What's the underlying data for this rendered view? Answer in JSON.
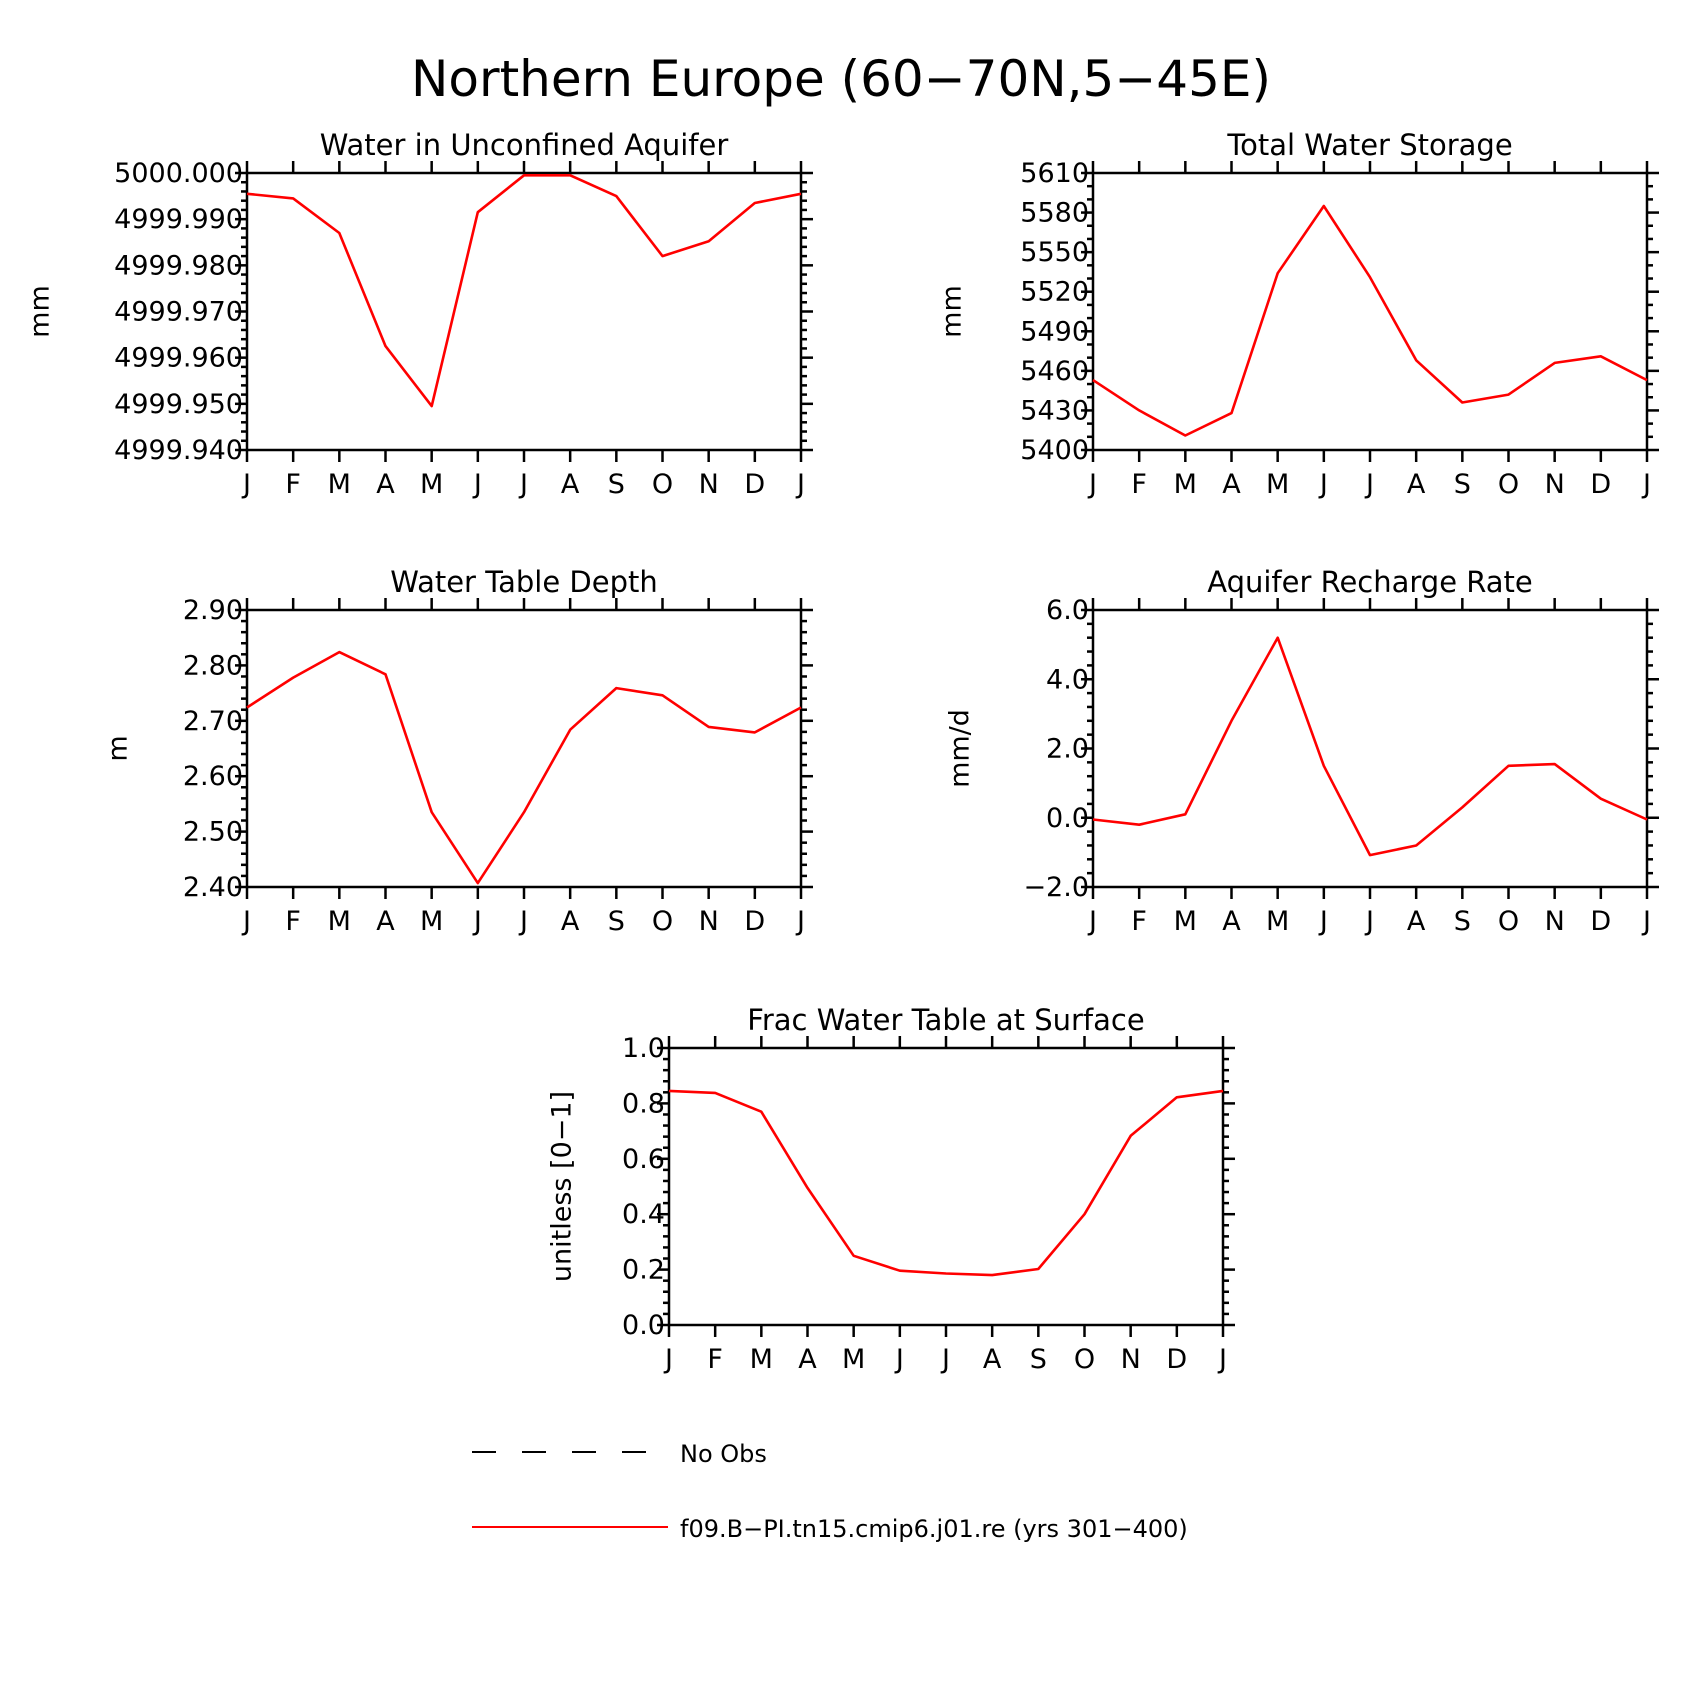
{
  "title": "Northern Europe (60−70N,5−45E)",
  "chart_data": [
    {
      "type": "line",
      "title": "Water in Unconfined Aquifer",
      "ylabel": "mm",
      "xlabel": "",
      "categories": [
        "J",
        "F",
        "M",
        "A",
        "M",
        "J",
        "J",
        "A",
        "S",
        "O",
        "N",
        "D",
        "J"
      ],
      "ylim": [
        4999.94,
        5000.0
      ],
      "yticks": [
        4999.94,
        4999.95,
        4999.96,
        4999.97,
        4999.98,
        4999.99,
        5000.0
      ],
      "ytick_labels": [
        "4999.940",
        "4999.950",
        "4999.960",
        "4999.970",
        "4999.980",
        "4999.990",
        "5000.000"
      ],
      "minor_per_major": 4,
      "series": [
        {
          "name": "f09.B−PI.tn15.cmip6.j01.re (yrs 301−400)",
          "values": [
            4999.9955,
            4999.9945,
            4999.987,
            4999.9625,
            4999.9495,
            4999.9915,
            4999.9995,
            4999.9995,
            4999.995,
            4999.982,
            4999.9852,
            4999.9935,
            4999.9955
          ]
        }
      ]
    },
    {
      "type": "line",
      "title": "Total Water Storage",
      "ylabel": "mm",
      "xlabel": "",
      "categories": [
        "J",
        "F",
        "M",
        "A",
        "M",
        "J",
        "J",
        "A",
        "S",
        "O",
        "N",
        "D",
        "J"
      ],
      "ylim": [
        5400,
        5610
      ],
      "yticks": [
        5400,
        5430,
        5460,
        5490,
        5520,
        5550,
        5580,
        5610
      ],
      "ytick_labels": [
        "5400",
        "5430",
        "5460",
        "5490",
        "5520",
        "5550",
        "5580",
        "5610"
      ],
      "minor_per_major": 2,
      "series": [
        {
          "name": "f09.B−PI.tn15.cmip6.j01.re (yrs 301−400)",
          "values": [
            5453,
            5430,
            5411,
            5428,
            5534,
            5585,
            5531,
            5468,
            5436,
            5442,
            5466,
            5471,
            5453
          ]
        }
      ]
    },
    {
      "type": "line",
      "title": "Water Table Depth",
      "ylabel": "m",
      "xlabel": "",
      "categories": [
        "J",
        "F",
        "M",
        "A",
        "M",
        "J",
        "J",
        "A",
        "S",
        "O",
        "N",
        "D",
        "J"
      ],
      "ylim": [
        2.4,
        2.9
      ],
      "yticks": [
        2.4,
        2.5,
        2.6,
        2.7,
        2.8,
        2.9
      ],
      "ytick_labels": [
        "2.40",
        "2.50",
        "2.60",
        "2.70",
        "2.80",
        "2.90"
      ],
      "minor_per_major": 4,
      "series": [
        {
          "name": "f09.B−PI.tn15.cmip6.j01.re (yrs 301−400)",
          "values": [
            2.724,
            2.778,
            2.824,
            2.784,
            2.535,
            2.407,
            2.535,
            2.684,
            2.759,
            2.746,
            2.689,
            2.679,
            2.724
          ]
        }
      ]
    },
    {
      "type": "line",
      "title": "Aquifer Recharge Rate",
      "ylabel": "mm/d",
      "xlabel": "",
      "categories": [
        "J",
        "F",
        "M",
        "A",
        "M",
        "J",
        "J",
        "A",
        "S",
        "O",
        "N",
        "D",
        "J"
      ],
      "ylim": [
        -2.0,
        6.0
      ],
      "yticks": [
        -2.0,
        0.0,
        2.0,
        4.0,
        6.0
      ],
      "ytick_labels": [
        "−2.0",
        "0.0",
        "2.0",
        "4.0",
        "6.0"
      ],
      "minor_per_major": 4,
      "series": [
        {
          "name": "f09.B−PI.tn15.cmip6.j01.re (yrs 301−400)",
          "values": [
            -0.05,
            -0.2,
            0.1,
            2.8,
            5.2,
            1.5,
            -1.08,
            -0.8,
            0.3,
            1.5,
            1.55,
            0.55,
            -0.05
          ]
        }
      ]
    },
    {
      "type": "line",
      "title": "Frac Water Table at Surface",
      "ylabel": "unitless [0−1]",
      "xlabel": "",
      "categories": [
        "J",
        "F",
        "M",
        "A",
        "M",
        "J",
        "J",
        "A",
        "S",
        "O",
        "N",
        "D",
        "J"
      ],
      "ylim": [
        0.0,
        1.0
      ],
      "yticks": [
        0.0,
        0.2,
        0.4,
        0.6,
        0.8,
        1.0
      ],
      "ytick_labels": [
        "0.0",
        "0.2",
        "0.4",
        "0.6",
        "0.8",
        "1.0"
      ],
      "minor_per_major": 4,
      "series": [
        {
          "name": "f09.B−PI.tn15.cmip6.j01.re (yrs 301−400)",
          "values": [
            0.845,
            0.838,
            0.77,
            0.495,
            0.25,
            0.196,
            0.186,
            0.18,
            0.202,
            0.4,
            0.683,
            0.822,
            0.845
          ]
        }
      ]
    }
  ],
  "legend": {
    "entries": [
      {
        "label": "No Obs",
        "style": "dashed",
        "color": "#000000"
      },
      {
        "label": "f09.B−PI.tn15.cmip6.j01.re (yrs 301−400)",
        "style": "solid",
        "color": "#ff0000"
      }
    ]
  },
  "colors": {
    "series": "#ff0000",
    "axes": "#000000",
    "background": "#ffffff"
  }
}
